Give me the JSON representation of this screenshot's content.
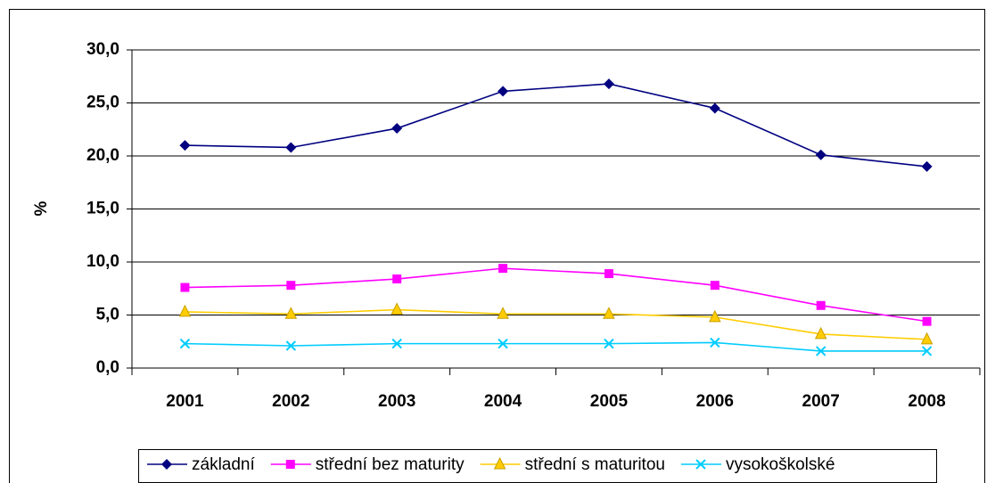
{
  "chart_data": {
    "type": "line",
    "y_label": "%",
    "categories": [
      "2001",
      "2002",
      "2003",
      "2004",
      "2005",
      "2006",
      "2007",
      "2008"
    ],
    "series": [
      {
        "name": "základní",
        "color": "#000080",
        "marker": "diamond",
        "values": [
          21.0,
          20.8,
          22.6,
          26.1,
          26.8,
          24.5,
          20.1,
          19.0
        ]
      },
      {
        "name": "střední bez maturity",
        "color": "#ff00ff",
        "marker": "square",
        "values": [
          7.6,
          7.8,
          8.4,
          9.4,
          8.9,
          7.8,
          5.9,
          4.4
        ]
      },
      {
        "name": "střední s maturitou",
        "color": "#ffcc00",
        "marker": "triangle",
        "values": [
          5.3,
          5.1,
          5.5,
          5.1,
          5.1,
          4.8,
          3.2,
          2.7
        ]
      },
      {
        "name": "vysokoškolské",
        "color": "#00ccff",
        "marker": "x",
        "values": [
          2.3,
          2.1,
          2.3,
          2.3,
          2.3,
          2.4,
          1.6,
          1.6
        ]
      }
    ],
    "ylim": [
      0,
      30
    ],
    "yticks": [
      {
        "value": 0,
        "label": "0,0"
      },
      {
        "value": 5,
        "label": "5,0"
      },
      {
        "value": 10,
        "label": "10,0"
      },
      {
        "value": 15,
        "label": "15,0"
      },
      {
        "value": 20,
        "label": "20,0"
      },
      {
        "value": 25,
        "label": "25,0"
      },
      {
        "value": 30,
        "label": "30,0"
      }
    ],
    "grid": true,
    "legend": "bottom"
  }
}
